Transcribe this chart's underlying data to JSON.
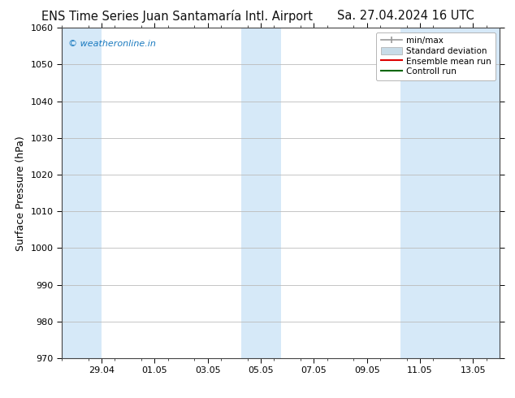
{
  "title_left": "ENS Time Series Juan Santamaría Intl. Airport",
  "title_right": "Sa. 27.04.2024 16 UTC",
  "ylabel": "Surface Pressure (hPa)",
  "ylim": [
    970,
    1060
  ],
  "yticks": [
    970,
    980,
    990,
    1000,
    1010,
    1020,
    1030,
    1040,
    1050,
    1060
  ],
  "xlim": [
    0,
    16.5
  ],
  "xtick_labels": [
    "29.04",
    "01.05",
    "03.05",
    "05.05",
    "07.05",
    "09.05",
    "11.05",
    "13.05"
  ],
  "xtick_positions": [
    1.5,
    3.5,
    5.5,
    7.5,
    9.5,
    11.5,
    13.5,
    15.5
  ],
  "shaded_bands": [
    {
      "xmin": 0.0,
      "xmax": 1.5
    },
    {
      "xmin": 6.75,
      "xmax": 8.25
    },
    {
      "xmin": 12.75,
      "xmax": 16.5
    }
  ],
  "shaded_color": "#d6e9f8",
  "background_color": "#ffffff",
  "grid_color": "#bbbbbb",
  "watermark_text": "© weatheronline.in",
  "watermark_color": "#1a7abf",
  "legend_items": [
    {
      "label": "min/max",
      "type": "errorbar",
      "color": "#999999"
    },
    {
      "label": "Standard deviation",
      "type": "fill",
      "color": "#c8dce8"
    },
    {
      "label": "Ensemble mean run",
      "type": "line",
      "color": "#dd0000"
    },
    {
      "label": "Controll run",
      "type": "line",
      "color": "#006600"
    }
  ],
  "title_fontsize": 10.5,
  "axis_fontsize": 9,
  "tick_fontsize": 8
}
